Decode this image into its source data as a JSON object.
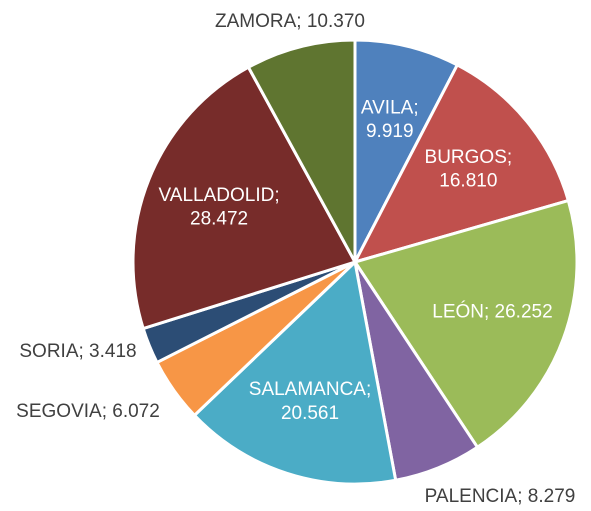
{
  "chart_data": {
    "type": "pie",
    "categories": [
      "AVILA",
      "BURGOS",
      "LEÓN",
      "PALENCIA",
      "SALAMANCA",
      "SEGOVIA",
      "SORIA",
      "VALLADOLID",
      "ZAMORA"
    ],
    "values": [
      9919,
      16810,
      26252,
      8279,
      20561,
      6072,
      3418,
      28472,
      10370
    ],
    "value_labels": [
      "AVILA; 9.919",
      "BURGOS; 16.810",
      "LEÓN; 26.252",
      "PALENCIA; 8.279",
      "SALAMANCA; 20.561",
      "SEGOVIA; 6.072",
      "SORIA; 3.418",
      "VALLADOLID; 28.472",
      "ZAMORA; 10.370"
    ],
    "colors": [
      "#4f81bd",
      "#c0504d",
      "#9bbb59",
      "#8064a2",
      "#4bacc6",
      "#f79646",
      "#2c4d75",
      "#772c2a",
      "#5f7530"
    ]
  }
}
